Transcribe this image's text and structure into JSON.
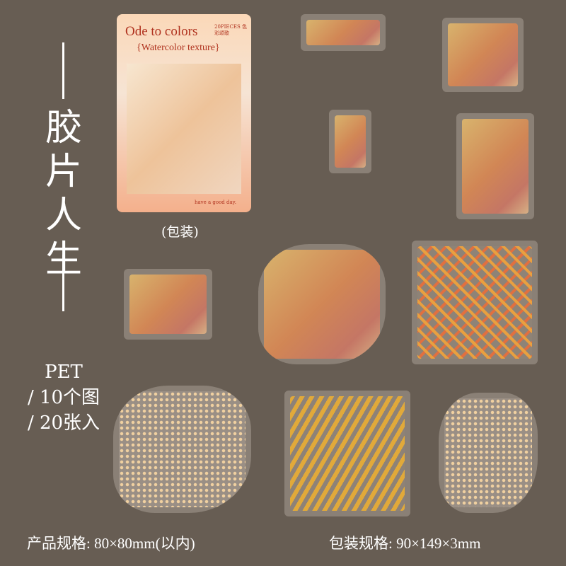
{
  "product": {
    "title_vertical": "胶片人生",
    "material": "PET",
    "designs": "/ 10个图",
    "count": "/ 20张入"
  },
  "package": {
    "title": "Ode to colors",
    "pieces": "20PIECES 色彩颂歌",
    "subtitle": "{Watercolor texture}",
    "footer": "have a good day.",
    "label": "(包装)"
  },
  "footer": {
    "product_spec": "产品规格: 80×80mm(以内)",
    "package_spec": "包装规格: 90×149×3mm"
  },
  "colors": {
    "background": "#675d53",
    "accent": "#b0321e"
  }
}
